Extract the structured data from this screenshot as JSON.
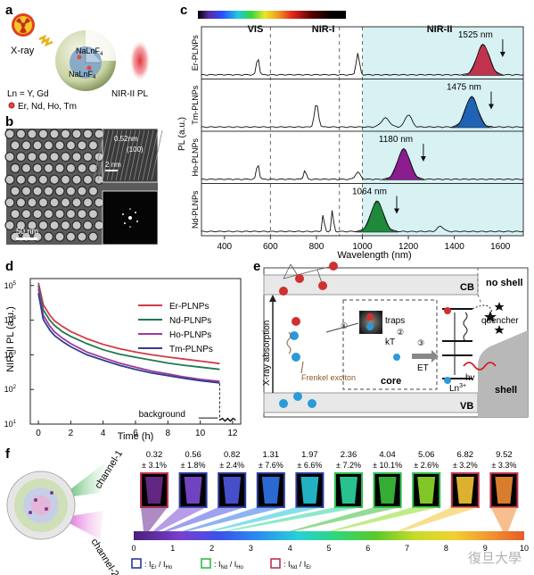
{
  "panel_labels": {
    "a": "a",
    "b": "b",
    "c": "c",
    "d": "d",
    "e": "e",
    "f": "f"
  },
  "panel_a": {
    "xray": "X-ray",
    "core_top": "NaLnF",
    "core_top_sub": "4",
    "core_bottom": "NaLnF",
    "core_bottom_sub": "4",
    "ln_line": "Ln = Y, Gd",
    "dopant_line": "Er, Nd, Ho, Tm",
    "nir_label": "NIR-II PL"
  },
  "panel_b": {
    "d_spacing": "0.52nm",
    "plane": "(100)",
    "inset_scale": "2 nm",
    "main_scale": "50 nm"
  },
  "panel_c": {
    "vis_label": "VIS",
    "nir1_label": "NIR-I",
    "nir2_label": "NIR-II",
    "xlabel": "Wavelength (nm)",
    "ylabel": "PL (a.u.)",
    "xticks": [
      "400",
      "600",
      "800",
      "1000",
      "1200",
      "1400",
      "1600"
    ],
    "rows": [
      {
        "name": "Er-PLNPs",
        "peak": "1525 nm",
        "color": "#c0334d"
      },
      {
        "name": "Tm-PLNPs",
        "peak": "1475 nm",
        "color": "#1f63b4"
      },
      {
        "name": "Ho-PLNPs",
        "peak": "1180 nm",
        "color": "#8b1d8f"
      },
      {
        "name": "Nd-PLNPs",
        "peak": "1064 nm",
        "color": "#1f8a3a"
      }
    ]
  },
  "chart_data": {
    "type": "line",
    "title": "",
    "xlabel": "Time (h)",
    "ylabel": "NIR-II PL (a.u.)",
    "xlim": [
      -0.5,
      12.5
    ],
    "ylim_log10": [
      1,
      5.2
    ],
    "xticks": [
      0,
      2,
      4,
      6,
      8,
      10,
      12
    ],
    "yticks": [
      "10",
      "10",
      "10",
      "10",
      "10"
    ],
    "ytick_exp": [
      "1",
      "2",
      "3",
      "4",
      "5"
    ],
    "annotation": "background",
    "x": [
      0,
      0.3,
      0.7,
      1,
      1.5,
      2,
      3,
      4,
      5,
      6,
      7,
      8,
      9,
      10,
      11.2
    ],
    "series": [
      {
        "name": "Er-PLNPs",
        "color": "#d43a48",
        "values": [
          120000,
          28000,
          14000,
          9500,
          6500,
          4700,
          2900,
          2000,
          1500,
          1200,
          1000,
          860,
          750,
          660,
          560
        ]
      },
      {
        "name": "Nd-PLNPs",
        "color": "#1e7a50",
        "values": [
          100000,
          20000,
          10000,
          7000,
          4600,
          3400,
          2100,
          1400,
          1050,
          850,
          700,
          580,
          500,
          440,
          380
        ]
      },
      {
        "name": "Ho-PLNPs",
        "color": "#a3389c",
        "values": [
          80000,
          14000,
          6800,
          4600,
          3000,
          2100,
          1200,
          820,
          580,
          440,
          340,
          280,
          230,
          195,
          170
        ]
      },
      {
        "name": "Tm-PLNPs",
        "color": "#2e3f91",
        "values": [
          60000,
          10500,
          5200,
          3600,
          2400,
          1700,
          1000,
          700,
          500,
          380,
          300,
          250,
          210,
          180,
          155
        ]
      }
    ]
  },
  "panel_e": {
    "xray_abs": "X-ray absorption",
    "cb": "CB",
    "vb": "VB",
    "no_shell": "no shell",
    "shell": "shell",
    "core": "core",
    "traps": "traps",
    "kt": "kT",
    "et": "ET",
    "quencher": "quencher",
    "hv": "hv",
    "frenkel": "Frenkel exciton",
    "ln3": "Ln",
    "ln3_sup": "3+",
    "step1": "①",
    "step2": "②",
    "step3": "③"
  },
  "panel_f": {
    "channel1": "channel-1",
    "channel2": "channel-2",
    "values": [
      "0.32",
      "0.56",
      "0.82",
      "1.31",
      "1.97",
      "2.36",
      "4.04",
      "5.06",
      "6.82",
      "9.52"
    ],
    "errors": [
      "± 3.1%",
      "± 1.8%",
      "± 2.4%",
      "± 7.6%",
      "± 6.6%",
      "± 7.2%",
      "± 10.1%",
      "± 2.6%",
      "± 3.2%",
      "± 3.3%"
    ],
    "frame_colors": [
      "#c0334d",
      "#2a3a9a",
      "#2a3a9a",
      "#2a3a9a",
      "#2a3a9a",
      "#2dbd4a",
      "#2dbd4a",
      "#2dbd4a",
      "#c0334d",
      "#c0334d"
    ],
    "fill_colors": [
      "#6b2b8f",
      "#7c4bd6",
      "#4f56e0",
      "#2f74e8",
      "#26c4d8",
      "#2fd6a0",
      "#3bc03b",
      "#8edc2a",
      "#f3c434",
      "#f08a32"
    ],
    "colorbar_ticks": [
      "0",
      "1",
      "2",
      "3",
      "4",
      "5",
      "6",
      "7",
      "8",
      "9",
      "10"
    ],
    "legend": [
      {
        "color": "#2a3a9a",
        "text": "Er / I",
        "sub1": "",
        "label": ": I",
        "s1": "Er",
        "s2": "Ho"
      },
      {
        "color": "#2dbd4a",
        "text": "",
        "label": ": I",
        "s1": "Nd",
        "s2": "Ho"
      },
      {
        "color": "#c0334d",
        "text": "",
        "label": ": I",
        "s1": "Nd",
        "s2": "Er"
      }
    ],
    "watermark": "復旦大學"
  }
}
